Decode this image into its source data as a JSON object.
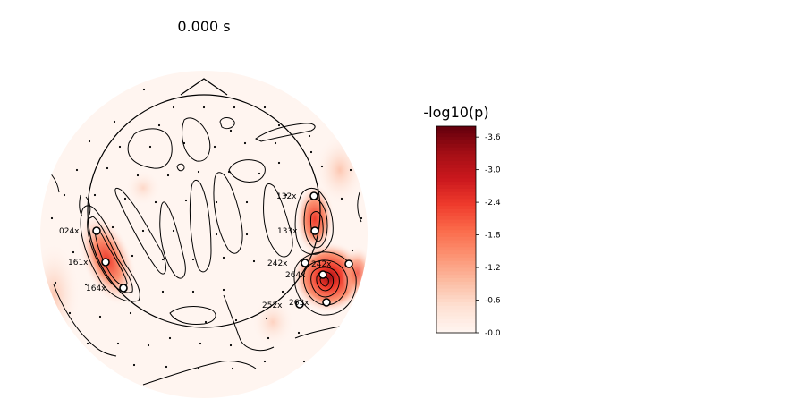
{
  "figure": {
    "title": "0.000 s"
  },
  "colorbar": {
    "title": "-log10(p)",
    "ticks": [
      "-3.6",
      "-3.0",
      "-2.4",
      "-1.8",
      "-1.2",
      "-0.6",
      "-0.0"
    ],
    "tick_values": [
      -3.6,
      -3.0,
      -2.4,
      -1.8,
      -1.2,
      -0.6,
      0.0
    ],
    "vmin": -3.8,
    "vmax": 0.0,
    "colors": [
      "#fff5f0",
      "#fee0d2",
      "#fcbba1",
      "#fc9272",
      "#fb6a4a",
      "#ef3b2c",
      "#cb181d",
      "#a50f15",
      "#67000d"
    ]
  },
  "chart_data": {
    "type": "topomap",
    "title": "0.000 s",
    "colorbar_label": "-log10(p)",
    "colorbar_range": [
      -3.8,
      0.0
    ],
    "marked_sensors": [
      {
        "label": "024x"
      },
      {
        "label": "161x"
      },
      {
        "label": "164x"
      },
      {
        "label": "132x"
      },
      {
        "label": "133x"
      },
      {
        "label": "242x"
      },
      {
        "label": "242x"
      },
      {
        "label": "264x"
      },
      {
        "label": "252x"
      },
      {
        "label": "263x"
      }
    ]
  }
}
